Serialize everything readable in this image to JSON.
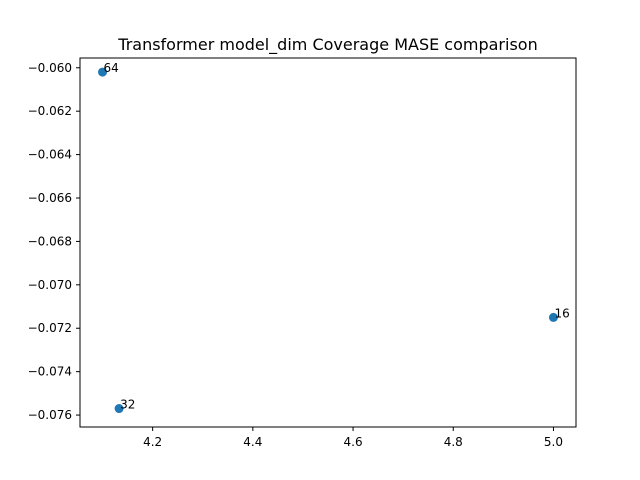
{
  "chart_data": {
    "type": "scatter",
    "title": "Transformer model_dim Coverage MASE comparison",
    "xlabel": "",
    "ylabel": "",
    "xlim": [
      4.055,
      5.045
    ],
    "ylim": [
      -0.07655,
      -0.05955
    ],
    "grid": false,
    "marker_color": "#1f77b4",
    "points": [
      {
        "label": "64",
        "x": 4.1,
        "y": -0.0602
      },
      {
        "label": "16",
        "x": 5.0,
        "y": -0.0715
      },
      {
        "label": "32",
        "x": 4.133,
        "y": -0.0757
      }
    ],
    "x_ticks": [
      {
        "value": 4.2,
        "label": "4.2"
      },
      {
        "value": 4.4,
        "label": "4.4"
      },
      {
        "value": 4.6,
        "label": "4.6"
      },
      {
        "value": 4.8,
        "label": "4.8"
      },
      {
        "value": 5.0,
        "label": "5.0"
      }
    ],
    "y_ticks": [
      {
        "value": -0.06,
        "label": "−0.060"
      },
      {
        "value": -0.062,
        "label": "−0.062"
      },
      {
        "value": -0.064,
        "label": "−0.064"
      },
      {
        "value": -0.066,
        "label": "−0.066"
      },
      {
        "value": -0.068,
        "label": "−0.068"
      },
      {
        "value": -0.07,
        "label": "−0.070"
      },
      {
        "value": -0.072,
        "label": "−0.072"
      },
      {
        "value": -0.074,
        "label": "−0.074"
      },
      {
        "value": -0.076,
        "label": "−0.076"
      }
    ]
  }
}
